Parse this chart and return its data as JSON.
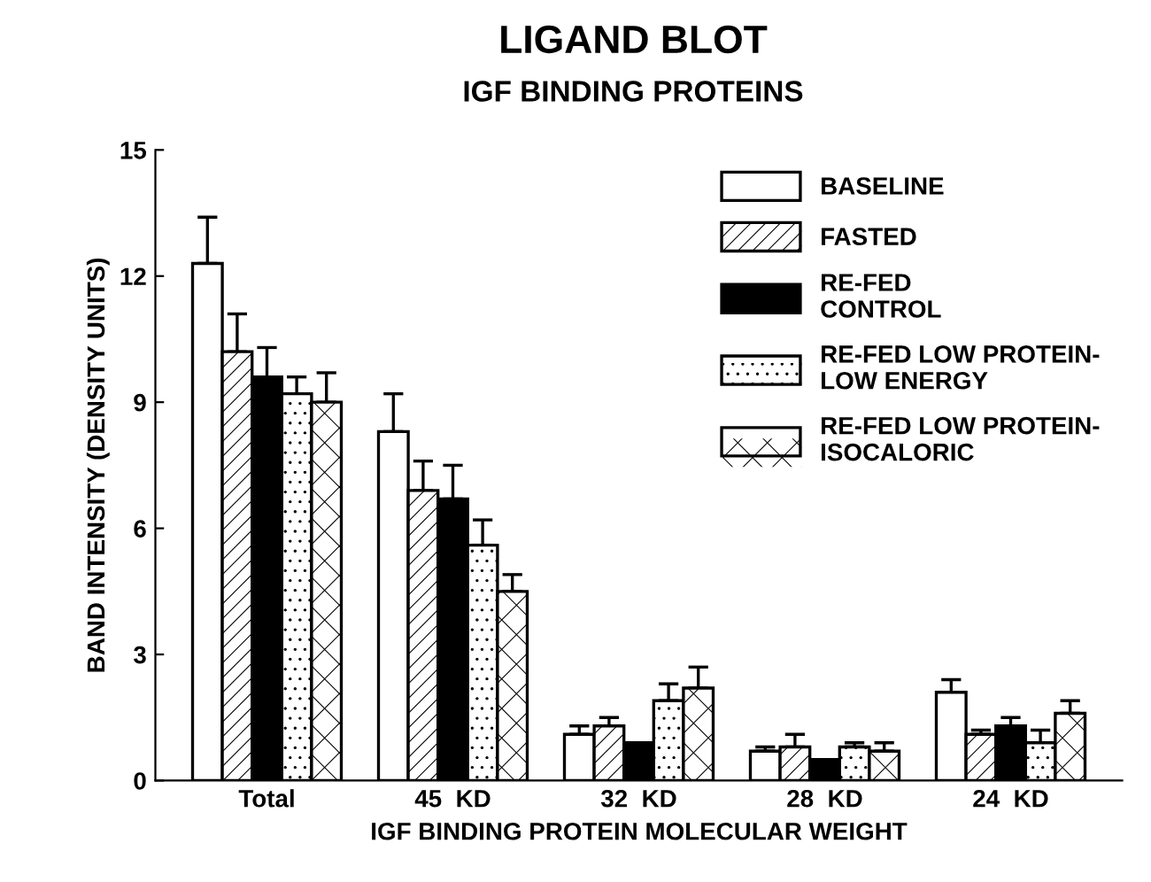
{
  "chart_data": {
    "type": "bar",
    "title": "LIGAND BLOT",
    "subtitle": "IGF BINDING PROTEINS",
    "xlabel": "IGF BINDING PROTEIN MOLECULAR WEIGHT",
    "ylabel": "BAND INTENSITY (DENSITY UNITS)",
    "categories": [
      "Total",
      "45  KD",
      "32  KD",
      "28  KD",
      "24  KD"
    ],
    "series": [
      {
        "name": "BASELINE",
        "color": "#ffffff",
        "values": [
          12.3,
          8.3,
          1.1,
          0.7,
          2.1
        ],
        "errors": [
          [
            12.3,
            13.4
          ],
          [
            8.3,
            9.2
          ],
          [
            1.1,
            1.3
          ],
          [
            0.7,
            0.8
          ],
          [
            2.1,
            2.4
          ]
        ]
      },
      {
        "name": "FASTED",
        "color": "#ffffff",
        "values": [
          10.2,
          6.9,
          1.3,
          0.8,
          1.1
        ],
        "errors": [
          [
            10.2,
            11.1
          ],
          [
            6.9,
            7.6
          ],
          [
            1.3,
            1.5
          ],
          [
            0.8,
            1.1
          ],
          [
            1.1,
            1.2
          ]
        ]
      },
      {
        "name": "RE-FED\nCONTROL",
        "color": "#000000",
        "values": [
          9.6,
          6.7,
          0.9,
          0.5,
          1.3
        ],
        "errors": [
          [
            9.6,
            10.3
          ],
          [
            6.7,
            7.5
          ],
          null,
          null,
          [
            1.3,
            1.5
          ]
        ]
      },
      {
        "name": "RE-FED LOW PROTEIN-\nLOW ENERGY",
        "color": "#ffffff",
        "values": [
          9.2,
          5.6,
          1.9,
          0.8,
          0.9
        ],
        "errors": [
          [
            9.2,
            9.6
          ],
          [
            5.6,
            6.2
          ],
          [
            1.9,
            2.3
          ],
          [
            0.8,
            0.9
          ],
          [
            0.9,
            1.2
          ]
        ]
      },
      {
        "name": "RE-FED LOW PROTEIN-\nISOCALORIC",
        "color": "#ffffff",
        "values": [
          9.0,
          4.5,
          2.2,
          0.7,
          1.6
        ],
        "errors": [
          [
            9.0,
            9.7
          ],
          [
            4.5,
            4.9
          ],
          [
            2.2,
            2.7
          ],
          [
            0.7,
            0.9
          ],
          [
            1.6,
            1.9
          ]
        ]
      }
    ],
    "ylim": [
      0,
      15
    ],
    "yticks": [
      0,
      3,
      6,
      9,
      12,
      15
    ],
    "grid": false,
    "legend": "top right"
  }
}
